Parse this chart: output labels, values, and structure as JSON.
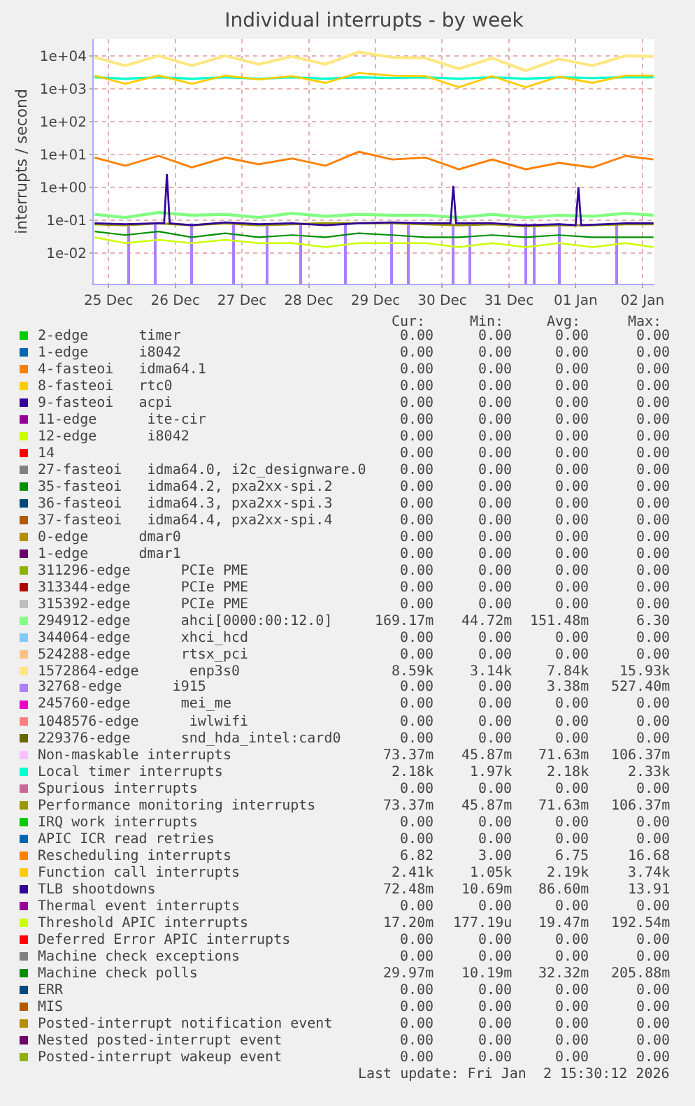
{
  "chart_data": {
    "type": "line",
    "title": "Individual interrupts - by week",
    "ylabel": "interrupts / second",
    "x": [
      "2025-12-24T19:00",
      "2025-12-25T06:00",
      "2025-12-25T18:00",
      "2025-12-26T06:00",
      "2025-12-26T18:00",
      "2025-12-27T06:00",
      "2025-12-27T18:00",
      "2025-12-28T06:00",
      "2025-12-28T18:00",
      "2025-12-29T06:00",
      "2025-12-29T18:00",
      "2025-12-30T06:00",
      "2025-12-30T18:00",
      "2025-12-31T06:00",
      "2025-12-31T18:00",
      "2026-01-01T06:00",
      "2026-01-01T18:00",
      "2026-01-02T04:00"
    ],
    "xlim": [
      "2025-12-24T18:40",
      "2026-01-02T04:20"
    ],
    "xticks": [
      {
        "value": "2025-12-25",
        "label": "25 Dec"
      },
      {
        "value": "2025-12-26",
        "label": "26 Dec"
      },
      {
        "value": "2025-12-27",
        "label": "27 Dec"
      },
      {
        "value": "2025-12-28",
        "label": "28 Dec"
      },
      {
        "value": "2025-12-29",
        "label": "29 Dec"
      },
      {
        "value": "2025-12-30",
        "label": "30 Dec"
      },
      {
        "value": "2025-12-31",
        "label": "31 Dec"
      },
      {
        "value": "2026-01-01",
        "label": "01 Jan"
      },
      {
        "value": "2026-01-02",
        "label": "02 Jan"
      }
    ],
    "ylim": [
      0.00115,
      32000
    ],
    "log": "y",
    "grid": true,
    "legend": "bottom",
    "yticks": [
      {
        "value": 0.01,
        "label": "1e-02"
      },
      {
        "value": 0.1,
        "label": "1e-01"
      },
      {
        "value": 1,
        "label": "1e+00"
      },
      {
        "value": 10,
        "label": "1e+01"
      },
      {
        "value": 100,
        "label": "1e+02"
      },
      {
        "value": 1000,
        "label": "1e+03"
      },
      {
        "value": 10000,
        "label": "1e+04"
      }
    ],
    "series": [
      {
        "name": "2-edge      timer",
        "color": "#00cc00",
        "values": [
          null,
          null,
          null,
          null,
          null,
          null,
          null,
          null,
          null,
          null,
          null,
          null,
          null,
          null,
          null,
          null,
          null,
          null
        ]
      },
      {
        "name": "1-edge      i8042",
        "color": "#0066b3",
        "values": [
          null,
          null,
          null,
          null,
          null,
          null,
          null,
          null,
          null,
          null,
          null,
          null,
          null,
          null,
          null,
          null,
          null,
          null
        ]
      },
      {
        "name": "4-fasteoi   idma64.1",
        "color": "#ff8000",
        "values": [
          null,
          null,
          null,
          null,
          null,
          null,
          null,
          null,
          null,
          null,
          null,
          null,
          null,
          null,
          null,
          null,
          null,
          null
        ]
      },
      {
        "name": "8-fasteoi   rtc0",
        "color": "#ffcc00",
        "values": [
          null,
          null,
          null,
          null,
          null,
          null,
          null,
          null,
          null,
          null,
          null,
          null,
          null,
          null,
          null,
          null,
          null,
          null
        ]
      },
      {
        "name": "9-fasteoi   acpi",
        "color": "#330099",
        "values": [
          null,
          null,
          null,
          null,
          null,
          null,
          null,
          null,
          null,
          null,
          null,
          null,
          null,
          null,
          null,
          null,
          null,
          null
        ]
      },
      {
        "name": "11-edge      ite-cir",
        "color": "#990099",
        "values": [
          null,
          null,
          null,
          null,
          null,
          null,
          null,
          null,
          null,
          null,
          null,
          null,
          null,
          null,
          null,
          null,
          null,
          null
        ]
      },
      {
        "name": "12-edge      i8042",
        "color": "#ccff00",
        "values": [
          null,
          null,
          null,
          null,
          null,
          null,
          null,
          null,
          null,
          null,
          null,
          null,
          null,
          null,
          null,
          null,
          null,
          null
        ]
      },
      {
        "name": "14",
        "color": "#ff0000",
        "values": [
          null,
          null,
          null,
          null,
          null,
          null,
          null,
          null,
          null,
          null,
          null,
          null,
          null,
          null,
          null,
          null,
          null,
          null
        ]
      },
      {
        "name": "27-fasteoi   idma64.0, i2c_designware.0",
        "color": "#808080",
        "values": [
          null,
          null,
          null,
          null,
          null,
          null,
          null,
          null,
          null,
          null,
          null,
          null,
          null,
          null,
          null,
          null,
          null,
          null
        ]
      },
      {
        "name": "35-fasteoi   idma64.2, pxa2xx-spi.2",
        "color": "#008f00",
        "values": [
          null,
          null,
          null,
          null,
          null,
          null,
          null,
          null,
          null,
          null,
          null,
          null,
          null,
          null,
          null,
          null,
          null,
          null
        ]
      },
      {
        "name": "36-fasteoi   idma64.3, pxa2xx-spi.3",
        "color": "#00487d",
        "values": [
          null,
          null,
          null,
          null,
          null,
          null,
          null,
          null,
          null,
          null,
          null,
          null,
          null,
          null,
          null,
          null,
          null,
          null
        ]
      },
      {
        "name": "37-fasteoi   idma64.4, pxa2xx-spi.4",
        "color": "#b35a00",
        "values": [
          null,
          null,
          null,
          null,
          null,
          null,
          null,
          null,
          null,
          null,
          null,
          null,
          null,
          null,
          null,
          null,
          null,
          null
        ]
      },
      {
        "name": "0-edge      dmar0",
        "color": "#b38f00",
        "values": [
          null,
          null,
          null,
          null,
          null,
          null,
          null,
          null,
          null,
          null,
          null,
          null,
          null,
          null,
          null,
          null,
          null,
          null
        ]
      },
      {
        "name": "1-edge      dmar1",
        "color": "#6b006b",
        "values": [
          null,
          null,
          null,
          null,
          null,
          null,
          null,
          null,
          null,
          null,
          null,
          null,
          null,
          null,
          null,
          null,
          null,
          null
        ]
      },
      {
        "name": "311296-edge      PCIe PME",
        "color": "#8fb300",
        "values": [
          null,
          null,
          null,
          null,
          null,
          null,
          null,
          null,
          null,
          null,
          null,
          null,
          null,
          null,
          null,
          null,
          null,
          null
        ]
      },
      {
        "name": "313344-edge      PCIe PME",
        "color": "#b30000",
        "values": [
          null,
          null,
          null,
          null,
          null,
          null,
          null,
          null,
          null,
          null,
          null,
          null,
          null,
          null,
          null,
          null,
          null,
          null
        ]
      },
      {
        "name": "315392-edge      PCIe PME",
        "color": "#bebebe",
        "values": [
          null,
          null,
          null,
          null,
          null,
          null,
          null,
          null,
          null,
          null,
          null,
          null,
          null,
          null,
          null,
          null,
          null,
          null
        ]
      },
      {
        "name": "294912-edge      ahci[0000:00:12.0]",
        "color": "#80ff80",
        "values": [
          0.15,
          0.12,
          0.17,
          0.14,
          0.15,
          0.12,
          0.16,
          0.13,
          0.15,
          0.14,
          0.14,
          0.12,
          0.15,
          0.12,
          0.14,
          0.13,
          0.16,
          0.14
        ]
      },
      {
        "name": "344064-edge      xhci_hcd",
        "color": "#80c9ff",
        "values": [
          null,
          null,
          null,
          null,
          null,
          null,
          null,
          null,
          null,
          null,
          null,
          null,
          null,
          null,
          null,
          null,
          null,
          null
        ]
      },
      {
        "name": "524288-edge      rtsx_pci",
        "color": "#ffc080",
        "values": [
          null,
          null,
          null,
          null,
          null,
          null,
          null,
          null,
          null,
          null,
          null,
          null,
          null,
          null,
          null,
          null,
          null,
          null
        ]
      },
      {
        "name": "1572864-edge      enp3s0",
        "color": "#ffe680",
        "values": [
          9000,
          5000,
          10000,
          5000,
          10000,
          5500,
          9500,
          5500,
          13000,
          9000,
          8500,
          4000,
          8500,
          3500,
          8000,
          5000,
          10000,
          9500
        ]
      },
      {
        "name": "32768-edge      i915",
        "color": "#aa80ff",
        "type": "bar",
        "x": [
          "2025-12-25T07:00",
          "2025-12-25T17:00",
          "2025-12-26T06:00",
          "2025-12-26T21:00",
          "2025-12-27T09:00",
          "2025-12-27T21:00",
          "2025-12-28T13:00",
          "2025-12-29T06:00",
          "2025-12-29T12:00",
          "2025-12-30T04:00",
          "2025-12-30T10:00",
          "2025-12-31T06:00",
          "2025-12-31T09:00",
          "2025-12-31T18:00",
          "2026-01-01T15:00"
        ],
        "values": [
          0.08,
          0.08,
          0.08,
          0.08,
          0.08,
          0.08,
          0.08,
          0.08,
          0.08,
          0.08,
          0.08,
          0.08,
          0.08,
          0.08,
          0.08
        ]
      },
      {
        "name": "245760-edge      mei_me",
        "color": "#ee00cc",
        "values": [
          null,
          null,
          null,
          null,
          null,
          null,
          null,
          null,
          null,
          null,
          null,
          null,
          null,
          null,
          null,
          null,
          null,
          null
        ]
      },
      {
        "name": "1048576-edge      iwlwifi",
        "color": "#ff8080",
        "values": [
          null,
          null,
          null,
          null,
          null,
          null,
          null,
          null,
          null,
          null,
          null,
          null,
          null,
          null,
          null,
          null,
          null,
          null
        ]
      },
      {
        "name": "229376-edge      snd_hda_intel:card0",
        "color": "#666600",
        "values": [
          null,
          null,
          null,
          null,
          null,
          null,
          null,
          null,
          null,
          null,
          null,
          null,
          null,
          null,
          null,
          null,
          null,
          null
        ]
      },
      {
        "name": "Non-maskable interrupts",
        "color": "#ffbfff",
        "values": [
          null,
          null,
          null,
          null,
          null,
          null,
          null,
          null,
          null,
          null,
          null,
          null,
          null,
          null,
          null,
          null,
          null,
          null
        ]
      },
      {
        "name": "Local timer interrupts",
        "color": "#00ffcc",
        "values": [
          2200,
          2000,
          2200,
          2000,
          2200,
          2000,
          2200,
          2000,
          2200,
          2100,
          2200,
          2000,
          2200,
          2000,
          2200,
          2100,
          2200,
          2200
        ]
      },
      {
        "name": "Spurious interrupts",
        "color": "#cc6699",
        "values": [
          null,
          null,
          null,
          null,
          null,
          null,
          null,
          null,
          null,
          null,
          null,
          null,
          null,
          null,
          null,
          null,
          null,
          null
        ]
      },
      {
        "name": "Performance monitoring interrupts",
        "color": "#999900",
        "values": [
          0.075,
          0.07,
          0.08,
          0.07,
          0.08,
          0.07,
          0.075,
          0.08,
          0.08,
          0.08,
          0.075,
          0.07,
          0.075,
          0.065,
          0.07,
          0.07,
          0.075,
          0.075
        ]
      },
      {
        "name": "IRQ work interrupts",
        "color": "#00cc00",
        "values": [
          null,
          null,
          null,
          null,
          null,
          null,
          null,
          null,
          null,
          null,
          null,
          null,
          null,
          null,
          null,
          null,
          null,
          null
        ]
      },
      {
        "name": "APIC ICR read retries",
        "color": "#0066b3",
        "values": [
          null,
          null,
          null,
          null,
          null,
          null,
          null,
          null,
          null,
          null,
          null,
          null,
          null,
          null,
          null,
          null,
          null,
          null
        ]
      },
      {
        "name": "Rescheduling interrupts",
        "color": "#ff8000",
        "values": [
          8,
          4.5,
          9,
          4,
          8,
          5,
          7.5,
          4.5,
          12,
          7,
          8,
          3.5,
          7,
          3.5,
          5.5,
          4,
          9,
          7
        ]
      },
      {
        "name": "Function call interrupts",
        "color": "#ffcc00",
        "values": [
          2500,
          1400,
          2500,
          1400,
          2500,
          1900,
          2400,
          1500,
          3000,
          2500,
          2400,
          1100,
          2400,
          1100,
          2300,
          1500,
          2500,
          2500
        ]
      },
      {
        "name": "TLB shootdowns",
        "color": "#330099",
        "x": [
          "2025-12-24T19:00",
          "2025-12-25T06:00",
          "2025-12-25T18:00",
          "2025-12-25T20:00",
          "2025-12-25T21:00",
          "2025-12-25T22:00",
          "2025-12-26T06:00",
          "2025-12-26T18:00",
          "2025-12-27T06:00",
          "2025-12-27T18:00",
          "2025-12-28T06:00",
          "2025-12-28T18:00",
          "2025-12-29T06:00",
          "2025-12-29T18:00",
          "2025-12-30T03:00",
          "2025-12-30T04:00",
          "2025-12-30T05:00",
          "2025-12-30T18:00",
          "2025-12-31T06:00",
          "2025-12-31T18:00",
          "2026-01-01T00:00",
          "2026-01-01T01:00",
          "2026-01-01T02:00",
          "2026-01-01T18:00",
          "2026-01-02T04:00"
        ],
        "values": [
          0.08,
          0.075,
          0.08,
          0.08,
          2.5,
          0.08,
          0.07,
          0.085,
          0.075,
          0.08,
          0.07,
          0.08,
          0.085,
          0.08,
          0.08,
          1.1,
          0.08,
          0.08,
          0.07,
          0.075,
          0.07,
          1.0,
          0.07,
          0.08,
          0.08
        ]
      },
      {
        "name": "Thermal event interrupts",
        "color": "#990099",
        "values": [
          null,
          null,
          null,
          null,
          null,
          null,
          null,
          null,
          null,
          null,
          null,
          null,
          null,
          null,
          null,
          null,
          null,
          null
        ]
      },
      {
        "name": "Threshold APIC interrupts",
        "color": "#ccff00",
        "values": [
          0.03,
          0.02,
          0.025,
          0.02,
          0.025,
          0.02,
          0.02,
          0.015,
          0.02,
          0.02,
          0.02,
          0.015,
          0.02,
          0.015,
          0.02,
          0.015,
          0.02,
          0.015
        ]
      },
      {
        "name": "Deferred Error APIC interrupts",
        "color": "#ff0000",
        "values": [
          null,
          null,
          null,
          null,
          null,
          null,
          null,
          null,
          null,
          null,
          null,
          null,
          null,
          null,
          null,
          null,
          null,
          null
        ]
      },
      {
        "name": "Machine check exceptions",
        "color": "#808080",
        "values": [
          null,
          null,
          null,
          null,
          null,
          null,
          null,
          null,
          null,
          null,
          null,
          null,
          null,
          null,
          null,
          null,
          null,
          null
        ]
      },
      {
        "name": "Machine check polls",
        "color": "#008f00",
        "values": [
          0.045,
          0.035,
          0.045,
          0.03,
          0.04,
          0.03,
          0.035,
          0.03,
          0.04,
          0.035,
          0.03,
          0.03,
          0.035,
          0.03,
          0.035,
          0.03,
          0.03,
          0.03
        ]
      },
      {
        "name": "ERR",
        "color": "#00487d",
        "values": [
          null,
          null,
          null,
          null,
          null,
          null,
          null,
          null,
          null,
          null,
          null,
          null,
          null,
          null,
          null,
          null,
          null,
          null
        ]
      },
      {
        "name": "MIS",
        "color": "#b35a00",
        "values": [
          null,
          null,
          null,
          null,
          null,
          null,
          null,
          null,
          null,
          null,
          null,
          null,
          null,
          null,
          null,
          null,
          null,
          null
        ]
      },
      {
        "name": "Posted-interrupt notification event",
        "color": "#b38f00",
        "values": [
          null,
          null,
          null,
          null,
          null,
          null,
          null,
          null,
          null,
          null,
          null,
          null,
          null,
          null,
          null,
          null,
          null,
          null
        ]
      },
      {
        "name": "Nested posted-interrupt event",
        "color": "#6b006b",
        "values": [
          null,
          null,
          null,
          null,
          null,
          null,
          null,
          null,
          null,
          null,
          null,
          null,
          null,
          null,
          null,
          null,
          null,
          null
        ]
      },
      {
        "name": "Posted-interrupt wakeup event",
        "color": "#8fb300",
        "values": [
          null,
          null,
          null,
          null,
          null,
          null,
          null,
          null,
          null,
          null,
          null,
          null,
          null,
          null,
          null,
          null,
          null,
          null
        ]
      }
    ],
    "annotations": [
      "Cur:",
      "Min:",
      "Avg:",
      "Max:",
      "0.00",
      "0.00",
      "0.00",
      "0.00",
      "0.00",
      "0.00",
      "0.00",
      "0.00",
      "0.00",
      "0.00",
      "0.00",
      "0.00",
      "0.00",
      "0.00",
      "0.00",
      "0.00",
      "0.00",
      "0.00",
      "0.00",
      "0.00",
      "0.00",
      "0.00",
      "0.00",
      "0.00",
      "0.00",
      "0.00",
      "0.00",
      "0.00",
      "0.00",
      "0.00",
      "0.00",
      "0.00",
      "0.00",
      "0.00",
      "0.00",
      "0.00",
      "0.00",
      "0.00",
      "0.00",
      "0.00",
      "0.00",
      "0.00",
      "0.00",
      "0.00",
      "0.00",
      "0.00",
      "0.00",
      "0.00",
      "0.00",
      "0.00",
      "0.00",
      "0.00",
      "0.00",
      "0.00",
      "0.00",
      "0.00",
      "0.00",
      "0.00",
      "0.00",
      "0.00",
      "0.00",
      "0.00",
      "0.00",
      "0.00",
      "0.00",
      "0.00",
      "0.00",
      "0.00",
      "169.17m",
      "44.72m",
      "151.48m",
      "6.30",
      "0.00",
      "0.00",
      "0.00",
      "0.00",
      "0.00",
      "0.00",
      "0.00",
      "0.00",
      "8.59k",
      "3.14k",
      "7.84k",
      "15.93k",
      "0.00",
      "0.00",
      "3.38m",
      "527.40m",
      "0.00",
      "0.00",
      "0.00",
      "0.00",
      "0.00",
      "0.00",
      "0.00",
      "0.00",
      "0.00",
      "0.00",
      "0.00",
      "0.00",
      "73.37m",
      "45.87m",
      "71.63m",
      "106.37m",
      "2.18k",
      "1.97k",
      "2.18k",
      "2.33k",
      "0.00",
      "0.00",
      "0.00",
      "0.00",
      "73.37m",
      "45.87m",
      "71.63m",
      "106.37m",
      "0.00",
      "0.00",
      "0.00",
      "0.00",
      "0.00",
      "0.00",
      "0.00",
      "0.00",
      "6.82",
      "3.00",
      "6.75",
      "16.68",
      "2.41k",
      "1.05k",
      "2.19k",
      "3.74k",
      "72.48m",
      "10.69m",
      "86.60m",
      "13.91",
      "0.00",
      "0.00",
      "0.00",
      "0.00",
      "17.20m",
      "177.19u",
      "19.47m",
      "192.54m",
      "0.00",
      "0.00",
      "0.00",
      "0.00",
      "0.00",
      "0.00",
      "0.00",
      "0.00",
      "29.97m",
      "10.19m",
      "32.32m",
      "205.88m",
      "0.00",
      "0.00",
      "0.00",
      "0.00",
      "0.00",
      "0.00",
      "0.00",
      "0.00",
      "0.00",
      "0.00",
      "0.00",
      "0.00",
      "0.00",
      "0.00",
      "0.00",
      "0.00",
      "0.00",
      "0.00",
      "0.00",
      "0.00",
      "Last update: Fri Jan  2 15:30:12 2026"
    ]
  }
}
